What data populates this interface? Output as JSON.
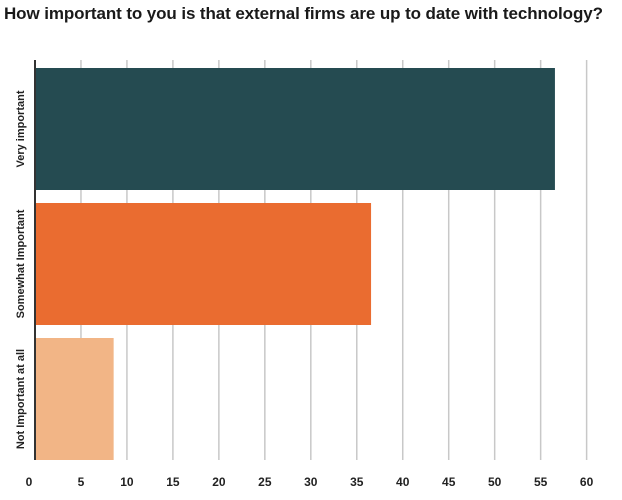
{
  "chart_data": {
    "type": "bar",
    "orientation": "horizontal",
    "title": "How important to you is that external firms are up to date with technology?",
    "xlabel": "",
    "ylabel": "",
    "categories": [
      "Very important",
      "Somewhat Important",
      "Not Important at all"
    ],
    "values": [
      56.5,
      36.5,
      8.5
    ],
    "colors": [
      "#254b51",
      "#ea6c30",
      "#f2b586"
    ],
    "xlim": [
      0,
      62
    ],
    "xticks": [
      0,
      5,
      10,
      15,
      20,
      25,
      30,
      35,
      40,
      45,
      50,
      55,
      60
    ],
    "grid": true,
    "legend": "none"
  }
}
